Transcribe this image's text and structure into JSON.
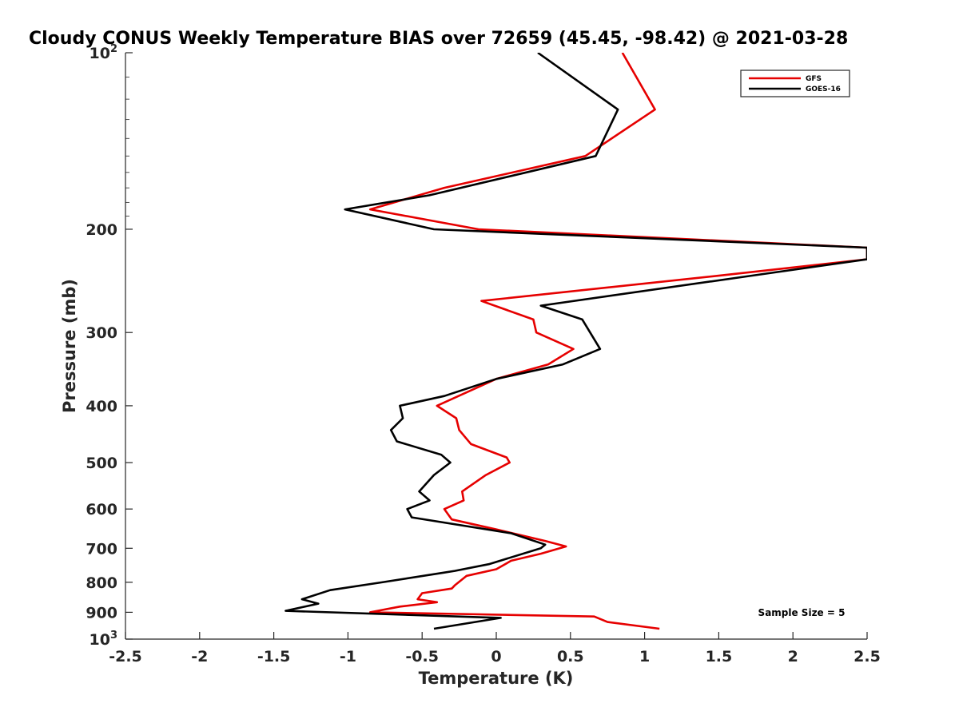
{
  "chart_data": {
    "type": "line",
    "title": "Cloudy CONUS Weekly Temperature BIAS over 72659 (45.45, -98.42) @ 2021-03-28",
    "xlabel": "Temperature (K)",
    "ylabel": "Pressure (mb)",
    "xlim": [
      -2.5,
      2.5
    ],
    "ylim": [
      100,
      1000
    ],
    "yscale": "log",
    "y_reversed": true,
    "x_ticks": [
      "-2.5",
      "-2",
      "-1.5",
      "-1",
      "-0.5",
      "0",
      "0.5",
      "1",
      "1.5",
      "2",
      "2.5"
    ],
    "y_ticks": [
      {
        "value": 100,
        "base": "10",
        "exp": "2"
      },
      {
        "value": 200,
        "label": "200"
      },
      {
        "value": 300,
        "label": "300"
      },
      {
        "value": 400,
        "label": "400"
      },
      {
        "value": 500,
        "label": "500"
      },
      {
        "value": 600,
        "label": "600"
      },
      {
        "value": 700,
        "label": "700"
      },
      {
        "value": 800,
        "label": "800"
      },
      {
        "value": 900,
        "label": "900"
      },
      {
        "value": 1000,
        "base": "10",
        "exp": "3"
      }
    ],
    "grid": false,
    "legend_position": "top-right",
    "annotation": "Sample Size = 5",
    "series": [
      {
        "name": "GFS",
        "color": "#e60000",
        "points": [
          [
            0.85,
            100
          ],
          [
            1.07,
            125
          ],
          [
            0.6,
            150
          ],
          [
            -0.35,
            170
          ],
          [
            -0.85,
            185
          ],
          [
            -0.12,
            200
          ],
          [
            2.5,
            215
          ],
          [
            2.5,
            225
          ],
          [
            1.5,
            240
          ],
          [
            -0.1,
            265
          ],
          [
            0.25,
            285
          ],
          [
            0.27,
            300
          ],
          [
            0.52,
            320
          ],
          [
            0.35,
            340
          ],
          [
            0.0,
            360
          ],
          [
            -0.4,
            400
          ],
          [
            -0.27,
            420
          ],
          [
            -0.25,
            440
          ],
          [
            -0.17,
            465
          ],
          [
            0.07,
            490
          ],
          [
            0.09,
            500
          ],
          [
            -0.07,
            525
          ],
          [
            -0.23,
            560
          ],
          [
            -0.22,
            580
          ],
          [
            -0.35,
            600
          ],
          [
            -0.3,
            625
          ],
          [
            0.0,
            650
          ],
          [
            0.33,
            680
          ],
          [
            0.47,
            695
          ],
          [
            0.3,
            715
          ],
          [
            0.1,
            735
          ],
          [
            0.0,
            760
          ],
          [
            -0.2,
            780
          ],
          [
            -0.28,
            810
          ],
          [
            -0.3,
            820
          ],
          [
            -0.5,
            835
          ],
          [
            -0.53,
            855
          ],
          [
            -0.4,
            865
          ],
          [
            -0.65,
            880
          ],
          [
            -0.85,
            900
          ],
          [
            0.66,
            915
          ],
          [
            0.75,
            935
          ],
          [
            1.1,
            960
          ]
        ]
      },
      {
        "name": "GOES-16",
        "color": "#000000",
        "points": [
          [
            0.28,
            100
          ],
          [
            0.82,
            125
          ],
          [
            0.67,
            150
          ],
          [
            -0.45,
            175
          ],
          [
            -1.02,
            185
          ],
          [
            -0.42,
            200
          ],
          [
            2.5,
            215
          ],
          [
            2.5,
            225
          ],
          [
            1.72,
            240
          ],
          [
            0.3,
            270
          ],
          [
            0.58,
            285
          ],
          [
            0.7,
            320
          ],
          [
            0.45,
            340
          ],
          [
            0.0,
            360
          ],
          [
            -0.35,
            385
          ],
          [
            -0.65,
            400
          ],
          [
            -0.63,
            420
          ],
          [
            -0.71,
            440
          ],
          [
            -0.67,
            460
          ],
          [
            -0.37,
            485
          ],
          [
            -0.31,
            500
          ],
          [
            -0.42,
            525
          ],
          [
            -0.52,
            560
          ],
          [
            -0.45,
            580
          ],
          [
            -0.6,
            600
          ],
          [
            -0.57,
            620
          ],
          [
            0.1,
            660
          ],
          [
            0.33,
            690
          ],
          [
            0.3,
            700
          ],
          [
            -0.05,
            745
          ],
          [
            -0.28,
            765
          ],
          [
            -0.35,
            770
          ],
          [
            -0.77,
            800
          ],
          [
            -1.12,
            825
          ],
          [
            -1.31,
            855
          ],
          [
            -1.2,
            870
          ],
          [
            -1.42,
            895
          ],
          [
            0.03,
            920
          ],
          [
            -0.42,
            960
          ]
        ]
      }
    ]
  }
}
